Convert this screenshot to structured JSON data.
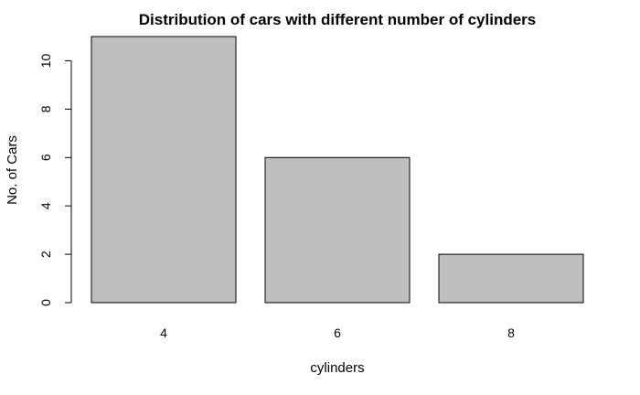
{
  "chart_data": {
    "type": "bar",
    "title": "Distribution of cars with different number of cylinders",
    "xlabel": "cylinders",
    "ylabel": "No. of Cars",
    "categories": [
      "4",
      "6",
      "8"
    ],
    "values": [
      11,
      6,
      2
    ],
    "ylim": [
      0,
      11
    ],
    "yticks": [
      "0",
      "2",
      "4",
      "6",
      "8",
      "10"
    ],
    "grid": false,
    "legend": "none",
    "bar_color": "#bebebe",
    "bar_border_color": "#000000"
  }
}
